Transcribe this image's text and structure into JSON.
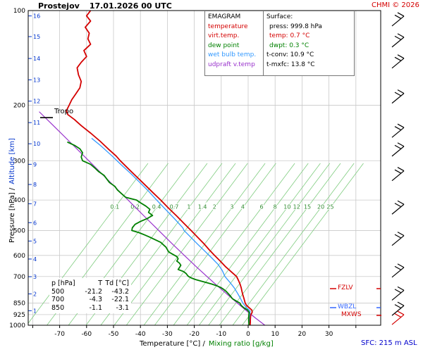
{
  "header": {
    "station": "Prostejov",
    "datetime": "17.01.2026 00 UTC",
    "copyright": "CHMI © 2026"
  },
  "legend": {
    "title": "EMAGRAM",
    "entries": [
      {
        "label": "temperature",
        "color": "#d40000"
      },
      {
        "label": "virt.temp.",
        "color": "#d40000"
      },
      {
        "label": "dew point",
        "color": "#008000"
      },
      {
        "label": "wet bulb temp.",
        "color": "#3399ff"
      },
      {
        "label": "udpraft v.temp",
        "color": "#9932cc"
      }
    ]
  },
  "surface_box": {
    "title": "Surface:",
    "press": "press: 999.8 hPa",
    "temp": "temp: 0.7 °C",
    "dwpt": "dwpt: 0.3 °C",
    "tconv": "t-conv: 10.9 °C",
    "tmxfc": "t-mxfc: 13.8 °C",
    "temp_color": "#d40000",
    "dwpt_color": "#008000"
  },
  "axes": {
    "x_title_temp": "Temperature [°C] /",
    "x_title_mix": "Mixing ratio [g/kg]",
    "y_title_pressure": "Pressure [hPa] /",
    "y_title_alt": "Altitude [km]"
  },
  "table": {
    "headers": [
      "p [hPa]",
      "T",
      "Td [°C]"
    ],
    "rows": [
      [
        "500",
        "-21.2",
        "-43.2"
      ],
      [
        "700",
        "-4.3",
        "-22.1"
      ],
      [
        "850",
        "-1.1",
        "-3.1"
      ]
    ]
  },
  "markers": {
    "tropo": "Tropo",
    "fzlv": "FZLV",
    "wbzl": "WBZL",
    "mxws": "MXWS",
    "sfc": "SFC: 215 m ASL"
  },
  "chart_data": {
    "type": "line",
    "diagram": "emagram sounding",
    "station": "Prostejov",
    "valid": "17.01.2026 00 UTC",
    "xlabel": "Temperature [°C] / Mixing ratio [g/kg]",
    "ylabel": "Pressure [hPa] / Altitude [km]",
    "x_axis": {
      "ticks": [
        -70,
        -60,
        -50,
        -40,
        -30,
        -20,
        -10,
        0,
        10,
        20,
        30
      ],
      "range_at_plot_edges": [
        -81.7,
        49.2
      ],
      "unit": "°C"
    },
    "y_axis": {
      "scale": "log",
      "ticks": [
        100,
        200,
        300,
        400,
        500,
        600,
        700,
        850,
        925,
        1000
      ],
      "range": [
        100,
        1000
      ],
      "unit": "hPa"
    },
    "altitude_ticks": [
      [
        16,
        104
      ],
      [
        15,
        121
      ],
      [
        14,
        142
      ],
      [
        13,
        166
      ],
      [
        12,
        194
      ],
      [
        11,
        227
      ],
      [
        10,
        265
      ],
      [
        9,
        308
      ],
      [
        8,
        357
      ],
      [
        7,
        411
      ],
      [
        6,
        472
      ],
      [
        5,
        540
      ],
      [
        4,
        616
      ],
      [
        3,
        701
      ],
      [
        2,
        795
      ],
      [
        1,
        899
      ]
    ],
    "surface": {
      "press_hpa": 999.8,
      "temp_c": 0.7,
      "dwpt_c": 0.3,
      "t_conv_c": 10.9,
      "t_mxfc_c": 13.8,
      "elevation_m_asl": 215
    },
    "tropopause_hpa": 210,
    "levels_table": {
      "pressure_hpa": [
        500,
        700,
        850
      ],
      "temp_c": [
        -21.2,
        -4.3,
        -1.1
      ],
      "dwpt_c": [
        -43.2,
        -22.1,
        -3.1
      ]
    },
    "series": [
      {
        "name": "temperature",
        "color": "#d40000",
        "width": 1.8,
        "points": [
          [
            100,
            -58.5
          ],
          [
            104,
            -60
          ],
          [
            108,
            -58.5
          ],
          [
            113,
            -60.5
          ],
          [
            118,
            -59
          ],
          [
            123,
            -59.5
          ],
          [
            128,
            -58.5
          ],
          [
            134,
            -61
          ],
          [
            140,
            -60
          ],
          [
            146,
            -62
          ],
          [
            152,
            -63.5
          ],
          [
            160,
            -63
          ],
          [
            168,
            -62
          ],
          [
            176,
            -62.5
          ],
          [
            184,
            -64
          ],
          [
            192,
            -65.5
          ],
          [
            200,
            -66.5
          ],
          [
            208,
            -67.5
          ],
          [
            214,
            -67
          ],
          [
            222,
            -64.5
          ],
          [
            232,
            -62
          ],
          [
            245,
            -58.5
          ],
          [
            260,
            -55
          ],
          [
            275,
            -52
          ],
          [
            290,
            -49
          ],
          [
            300,
            -47.5
          ],
          [
            320,
            -44.2
          ],
          [
            340,
            -41
          ],
          [
            360,
            -38
          ],
          [
            380,
            -35.2
          ],
          [
            400,
            -32.5
          ],
          [
            425,
            -29.5
          ],
          [
            450,
            -26.5
          ],
          [
            475,
            -23.8
          ],
          [
            500,
            -21.2
          ],
          [
            525,
            -18.8
          ],
          [
            550,
            -16.5
          ],
          [
            575,
            -14.5
          ],
          [
            600,
            -12.5
          ],
          [
            625,
            -10.4
          ],
          [
            650,
            -8.5
          ],
          [
            675,
            -6.4
          ],
          [
            700,
            -4.3
          ],
          [
            720,
            -3.6
          ],
          [
            740,
            -3
          ],
          [
            760,
            -2.6
          ],
          [
            780,
            -2.3
          ],
          [
            800,
            -2
          ],
          [
            820,
            -1.6
          ],
          [
            850,
            -1.1
          ],
          [
            865,
            -0.6
          ],
          [
            880,
            0.4
          ],
          [
            895,
            1.4
          ],
          [
            910,
            1.5
          ],
          [
            925,
            1
          ],
          [
            940,
            0.9
          ],
          [
            960,
            0.8
          ],
          [
            980,
            0.8
          ],
          [
            1000,
            0.7
          ]
        ]
      },
      {
        "name": "dew point",
        "color": "#008000",
        "width": 1.8,
        "points": [
          [
            262,
            -67
          ],
          [
            268,
            -64.5
          ],
          [
            275,
            -62.5
          ],
          [
            283,
            -61.5
          ],
          [
            292,
            -62
          ],
          [
            300,
            -61.5
          ],
          [
            308,
            -58.5
          ],
          [
            316,
            -57
          ],
          [
            325,
            -55.5
          ],
          [
            334,
            -53.5
          ],
          [
            343,
            -52.5
          ],
          [
            352,
            -51.5
          ],
          [
            362,
            -49.5
          ],
          [
            372,
            -48.5
          ],
          [
            382,
            -47
          ],
          [
            392,
            -45.5
          ],
          [
            400,
            -41.5
          ],
          [
            408,
            -40
          ],
          [
            418,
            -38
          ],
          [
            428,
            -36.5
          ],
          [
            438,
            -37
          ],
          [
            448,
            -35.5
          ],
          [
            458,
            -37.5
          ],
          [
            468,
            -40
          ],
          [
            478,
            -42
          ],
          [
            490,
            -43
          ],
          [
            500,
            -43.2
          ],
          [
            508,
            -40.5
          ],
          [
            516,
            -38.5
          ],
          [
            525,
            -36.5
          ],
          [
            535,
            -34.5
          ],
          [
            545,
            -32.5
          ],
          [
            555,
            -31.5
          ],
          [
            565,
            -30.5
          ],
          [
            575,
            -30
          ],
          [
            585,
            -29.5
          ],
          [
            595,
            -28
          ],
          [
            605,
            -26.5
          ],
          [
            615,
            -26
          ],
          [
            625,
            -26.5
          ],
          [
            635,
            -25.5
          ],
          [
            645,
            -25
          ],
          [
            655,
            -25.5
          ],
          [
            665,
            -26
          ],
          [
            675,
            -24
          ],
          [
            685,
            -23
          ],
          [
            695,
            -22.5
          ],
          [
            700,
            -22.1
          ],
          [
            708,
            -21
          ],
          [
            716,
            -19.5
          ],
          [
            724,
            -17.5
          ],
          [
            732,
            -15.5
          ],
          [
            740,
            -13.5
          ],
          [
            750,
            -11.5
          ],
          [
            760,
            -10
          ],
          [
            770,
            -9
          ],
          [
            780,
            -8.2
          ],
          [
            790,
            -7.6
          ],
          [
            800,
            -7
          ],
          [
            812,
            -6.4
          ],
          [
            824,
            -5.8
          ],
          [
            836,
            -4.6
          ],
          [
            850,
            -3.1
          ],
          [
            865,
            -2.6
          ],
          [
            880,
            -1.6
          ],
          [
            895,
            -0.2
          ],
          [
            910,
            0.4
          ],
          [
            925,
            0.3
          ],
          [
            945,
            0.2
          ],
          [
            965,
            0.2
          ],
          [
            985,
            0.3
          ],
          [
            1000,
            0.3
          ]
        ]
      },
      {
        "name": "wet bulb temp.",
        "color": "#3399ff",
        "width": 1.3,
        "points": [
          [
            255,
            -58
          ],
          [
            270,
            -54.5
          ],
          [
            290,
            -50.5
          ],
          [
            310,
            -47
          ],
          [
            330,
            -43.5
          ],
          [
            350,
            -40.5
          ],
          [
            375,
            -37
          ],
          [
            400,
            -34
          ],
          [
            430,
            -30.5
          ],
          [
            460,
            -27.2
          ],
          [
            490,
            -24.3
          ],
          [
            500,
            -23.8
          ],
          [
            520,
            -21.8
          ],
          [
            550,
            -19
          ],
          [
            580,
            -16.2
          ],
          [
            610,
            -13.6
          ],
          [
            640,
            -11.2
          ],
          [
            670,
            -9.6
          ],
          [
            700,
            -8.6
          ],
          [
            730,
            -6.8
          ],
          [
            760,
            -5.2
          ],
          [
            790,
            -4
          ],
          [
            820,
            -2.9
          ],
          [
            850,
            -2
          ],
          [
            880,
            -0.6
          ],
          [
            900,
            0.7
          ],
          [
            925,
            0.6
          ],
          [
            950,
            0.5
          ],
          [
            975,
            0.5
          ],
          [
            1000,
            0.5
          ]
        ]
      },
      {
        "name": "updraft virt. temp.",
        "color": "#9932cc",
        "width": 1.2,
        "points": [
          [
            1000,
            6.2
          ],
          [
            950,
            2.8
          ],
          [
            900,
            -0.6
          ],
          [
            850,
            -4
          ],
          [
            800,
            -7.6
          ],
          [
            750,
            -11.4
          ],
          [
            700,
            -15.3
          ],
          [
            650,
            -19.4
          ],
          [
            600,
            -23.7
          ],
          [
            550,
            -28.3
          ],
          [
            500,
            -33.2
          ],
          [
            450,
            -38.6
          ],
          [
            400,
            -44.6
          ],
          [
            350,
            -51.4
          ],
          [
            300,
            -59.2
          ],
          [
            260,
            -66.5
          ],
          [
            230,
            -72.8
          ],
          [
            210,
            -77.5
          ]
        ]
      }
    ],
    "mixing_ratio_lines": {
      "label_row_hpa": 420,
      "values": [
        0.1,
        0.2,
        0.4,
        0.7,
        1,
        1.4,
        2,
        3,
        4,
        6,
        8,
        10,
        12,
        15,
        20,
        25
      ],
      "label_t": [
        -49.5,
        -42,
        -34,
        -27.5,
        -22,
        -17,
        -12.5,
        -6,
        -2,
        5,
        10,
        14.5,
        18,
        22,
        27,
        30.5
      ],
      "color": "#7fcc7f",
      "label_color": "#2e8b2e"
    },
    "wind_barbs": [
      {
        "hpa": 108
      },
      {
        "hpa": 126
      },
      {
        "hpa": 147
      },
      {
        "hpa": 190
      },
      {
        "hpa": 244
      },
      {
        "hpa": 280
      },
      {
        "hpa": 335
      },
      {
        "hpa": 428
      },
      {
        "hpa": 538
      },
      {
        "hpa": 679
      },
      {
        "hpa": 803
      },
      {
        "hpa": 898
      },
      {
        "hpa": 960,
        "color": "#d40000"
      }
    ]
  }
}
